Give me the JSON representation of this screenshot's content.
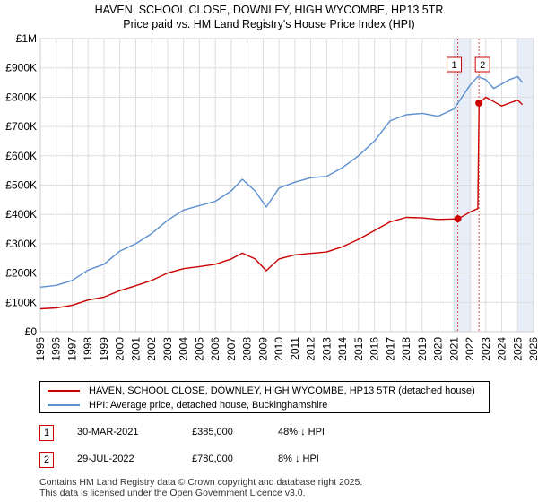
{
  "title_line1": "HAVEN, SCHOOL CLOSE, DOWNLEY, HIGH WYCOMBE, HP13 5TR",
  "title_line2": "Price paid vs. HM Land Registry's House Price Index (HPI)",
  "colors": {
    "property": "#cc0000",
    "hpi": "#5b8fd0",
    "marker": "#cc0000",
    "grid": "#dddddd",
    "shade": "#e8eef8"
  },
  "chart_data": {
    "type": "line",
    "title": "Price paid vs. HM Land Registry's House Price Index (HPI)",
    "xlabel": "",
    "ylabel": "",
    "xlim": [
      1995,
      2026
    ],
    "ylim": [
      0,
      1000000
    ],
    "y_ticks": [
      0,
      100000,
      200000,
      300000,
      400000,
      500000,
      600000,
      700000,
      800000,
      900000,
      1000000
    ],
    "y_tick_labels": [
      "£0",
      "£100K",
      "£200K",
      "£300K",
      "£400K",
      "£500K",
      "£600K",
      "£700K",
      "£800K",
      "£900K",
      "£1M"
    ],
    "x_ticks": [
      1995,
      1996,
      1997,
      1998,
      1999,
      2000,
      2001,
      2002,
      2003,
      2004,
      2005,
      2006,
      2007,
      2008,
      2009,
      2010,
      2011,
      2012,
      2013,
      2014,
      2015,
      2016,
      2017,
      2018,
      2019,
      2020,
      2021,
      2022,
      2023,
      2024,
      2025,
      2026
    ],
    "x_tick_labels": [
      "1995",
      "1996",
      "1997",
      "1998",
      "1999",
      "2000",
      "2001",
      "2002",
      "2003",
      "2004",
      "2005",
      "2006",
      "2007",
      "2008",
      "2009",
      "2010",
      "2011",
      "2012",
      "2013",
      "2014",
      "2015",
      "2016",
      "2017",
      "2018",
      "2019",
      "2020",
      "2021",
      "2022",
      "2023",
      "2024",
      "2025",
      "2026"
    ],
    "grid": true,
    "shaded_ranges": [
      [
        2021.0,
        2022.1
      ],
      [
        2025.0,
        2026.0
      ]
    ],
    "series": [
      {
        "name": "HAVEN, SCHOOL CLOSE, DOWNLEY, HIGH WYCOMBE, HP13 5TR (detached house)",
        "x": [
          1995,
          1996,
          1997,
          1998,
          1999,
          2000,
          2001,
          2002,
          2003,
          2004,
          2005,
          2006,
          2007,
          2007.7,
          2008.5,
          2009.2,
          2010,
          2011,
          2012,
          2013,
          2014,
          2015,
          2016,
          2017,
          2018,
          2019,
          2020,
          2021.25,
          2021.5,
          2022.0,
          2022.5,
          2022.58,
          2022.8,
          2023,
          2023.5,
          2024,
          2024.5,
          2025,
          2025.3
        ],
        "values": [
          78000,
          81000,
          90000,
          108000,
          118000,
          140000,
          157000,
          175000,
          200000,
          215000,
          222000,
          230000,
          248000,
          268000,
          248000,
          208000,
          248000,
          262000,
          267000,
          272000,
          290000,
          315000,
          345000,
          375000,
          390000,
          388000,
          383000,
          385000,
          392000,
          408000,
          420000,
          780000,
          790000,
          800000,
          785000,
          770000,
          780000,
          790000,
          775000
        ]
      },
      {
        "name": "HPI: Average price, detached house, Buckinghamshire",
        "x": [
          1995,
          1996,
          1997,
          1998,
          1999,
          2000,
          2001,
          2002,
          2003,
          2004,
          2005,
          2006,
          2007,
          2007.7,
          2008.5,
          2009.2,
          2010,
          2011,
          2012,
          2013,
          2014,
          2015,
          2016,
          2017,
          2018,
          2019,
          2020,
          2021.0,
          2021.5,
          2022.0,
          2022.5,
          2023,
          2023.5,
          2024,
          2024.5,
          2025,
          2025.3
        ],
        "values": [
          152000,
          158000,
          175000,
          210000,
          230000,
          275000,
          300000,
          335000,
          380000,
          415000,
          430000,
          445000,
          480000,
          520000,
          480000,
          425000,
          490000,
          510000,
          525000,
          530000,
          560000,
          600000,
          650000,
          720000,
          740000,
          745000,
          735000,
          760000,
          800000,
          840000,
          870000,
          860000,
          830000,
          845000,
          860000,
          870000,
          850000
        ]
      }
    ],
    "sale_markers": [
      {
        "label": "1",
        "x": 2021.24,
        "value": 385000
      },
      {
        "label": "2",
        "x": 2022.57,
        "value": 780000
      }
    ]
  },
  "legend": {
    "property_label": "HAVEN, SCHOOL CLOSE, DOWNLEY, HIGH WYCOMBE, HP13 5TR (detached house)",
    "hpi_label": "HPI: Average price, detached house, Buckinghamshire"
  },
  "sales": [
    {
      "num": "1",
      "date": "30-MAR-2021",
      "price": "£385,000",
      "hpi_diff": "48% ↓ HPI"
    },
    {
      "num": "2",
      "date": "29-JUL-2022",
      "price": "£780,000",
      "hpi_diff": "8% ↓ HPI"
    }
  ],
  "footer": {
    "line1": "Contains HM Land Registry data © Crown copyright and database right 2025.",
    "line2": "This data is licensed under the Open Government Licence v3.0."
  }
}
